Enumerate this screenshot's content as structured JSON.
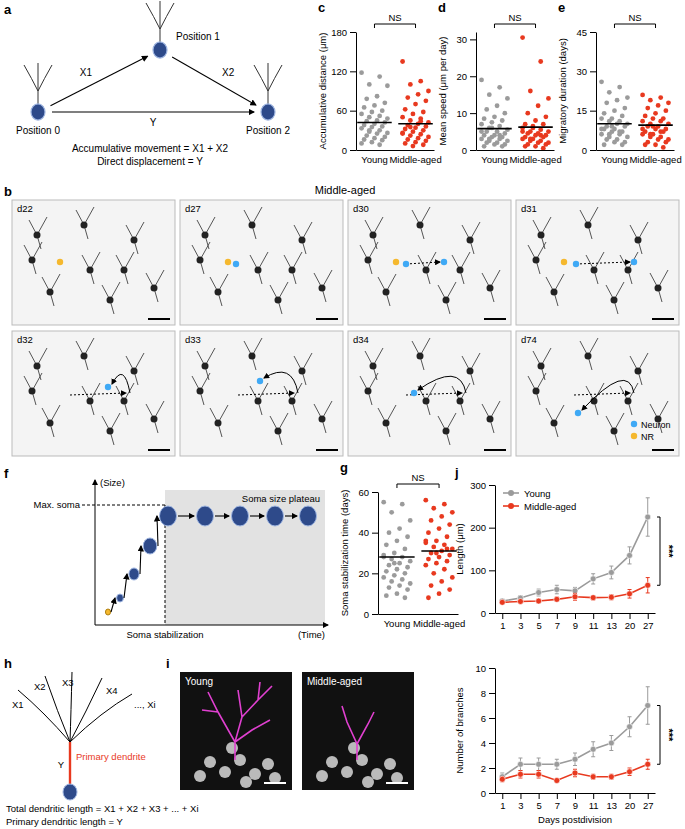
{
  "chart_data": [
    {
      "type": "strip",
      "panel": "c",
      "categories": [
        "Young",
        "Middle-aged"
      ],
      "y_label": "Accumulative distance (μm)",
      "ylim": [
        0,
        180
      ],
      "yticks": [
        0,
        60,
        120,
        180
      ],
      "annotation": "NS",
      "groups": [
        {
          "color": "#9b9b9b",
          "mean": 42,
          "values": [
            118,
            112,
            100,
            98,
            82,
            78,
            72,
            68,
            65,
            60,
            58,
            55,
            52,
            50,
            48,
            45,
            44,
            42,
            40,
            38,
            36,
            35,
            33,
            30,
            28,
            26,
            25,
            22,
            20,
            18,
            16,
            15,
            12,
            10,
            8,
            30
          ]
        },
        {
          "color": "#e8391f",
          "mean": 40,
          "values": [
            135,
            105,
            100,
            90,
            85,
            80,
            75,
            70,
            62,
            58,
            55,
            50,
            48,
            45,
            42,
            40,
            38,
            36,
            34,
            32,
            30,
            28,
            26,
            24,
            22,
            20,
            18,
            16,
            14,
            12,
            10,
            8,
            6,
            25,
            44,
            35
          ]
        }
      ]
    },
    {
      "type": "strip",
      "panel": "d",
      "categories": [
        "Young",
        "Middle-aged"
      ],
      "y_label": "Mean speed (μm per day)",
      "ylim": [
        0,
        32
      ],
      "yticks": [
        0,
        10,
        20,
        30
      ],
      "annotation": "NS",
      "groups": [
        {
          "color": "#9b9b9b",
          "mean": 5.8,
          "values": [
            19,
            17,
            15,
            14,
            12,
            11,
            10,
            9,
            8.5,
            8,
            7.5,
            7,
            6.5,
            6,
            5.5,
            5,
            5,
            4.5,
            4,
            4,
            3.5,
            3.5,
            3,
            3,
            2.5,
            2.5,
            2,
            2,
            1.5,
            1.5,
            1,
            1,
            6,
            5,
            4,
            3
          ]
        },
        {
          "color": "#e8391f",
          "mean": 6.2,
          "values": [
            30.5,
            24,
            16,
            14,
            12,
            10,
            9,
            8,
            7,
            7,
            6.5,
            6,
            5.5,
            5,
            5,
            4.5,
            4.5,
            4,
            4,
            3.5,
            3.5,
            3,
            3,
            2.5,
            2.5,
            2,
            2,
            1.5,
            1.5,
            1,
            1,
            0.5,
            6,
            5,
            4,
            3
          ]
        }
      ]
    },
    {
      "type": "strip",
      "panel": "e",
      "categories": [
        "Young",
        "Middle-aged"
      ],
      "y_label": "Migratory duration (days)",
      "ylim": [
        0,
        45
      ],
      "yticks": [
        0,
        15,
        30,
        45
      ],
      "annotation": "NS",
      "groups": [
        {
          "color": "#9b9b9b",
          "mean": 10,
          "values": [
            26,
            24,
            22,
            20,
            19,
            18,
            16,
            15,
            14,
            13,
            12,
            12,
            11,
            11,
            10,
            10,
            9,
            9,
            8,
            8,
            7,
            7,
            6,
            6,
            5,
            5,
            4,
            4,
            3,
            3,
            2,
            2,
            9,
            8,
            7,
            6
          ]
        },
        {
          "color": "#e8391f",
          "mean": 9.5,
          "values": [
            21,
            20,
            19,
            18,
            17,
            16,
            15,
            14,
            13,
            12,
            12,
            11,
            11,
            10,
            10,
            9,
            9,
            8,
            8,
            7,
            7,
            6,
            6,
            5,
            5,
            4,
            4,
            3,
            3,
            2,
            2,
            1,
            9,
            8,
            7,
            6
          ]
        }
      ]
    },
    {
      "type": "strip",
      "panel": "g",
      "categories": [
        "Young",
        "Middle-aged"
      ],
      "y_label": "Soma stabilization time (days)",
      "ylim": [
        0,
        60
      ],
      "yticks": [
        0,
        20,
        40,
        60
      ],
      "annotation": "NS",
      "groups": [
        {
          "color": "#9b9b9b",
          "mean": 28,
          "values": [
            55,
            54,
            50,
            46,
            42,
            40,
            38,
            36,
            34,
            32,
            30,
            29,
            28,
            27,
            26,
            25,
            24,
            23,
            22,
            21,
            20,
            19,
            18,
            17,
            16,
            15,
            14,
            13,
            12,
            10,
            9,
            8,
            25,
            28
          ]
        },
        {
          "color": "#e8391f",
          "mean": 31,
          "values": [
            56,
            54,
            52,
            50,
            48,
            46,
            44,
            42,
            40,
            38,
            36,
            35,
            34,
            33,
            32,
            31,
            30,
            29,
            28,
            27,
            26,
            25,
            24,
            22,
            20,
            18,
            16,
            14,
            12,
            10,
            8,
            32,
            30,
            36
          ]
        }
      ]
    },
    {
      "type": "line",
      "panel": "j",
      "categories": [
        1,
        3,
        5,
        7,
        9,
        11,
        13,
        20,
        27
      ],
      "y_label": "Length (μm)",
      "ylim": [
        0,
        300
      ],
      "yticks": [
        0,
        100,
        200,
        300
      ],
      "legend": "top-left",
      "annotation": "***",
      "series": [
        {
          "name": "Young",
          "color": "#9b9b9b",
          "marker": "circle",
          "values": [
            28,
            35,
            48,
            55,
            52,
            80,
            95,
            135,
            225
          ],
          "errors": [
            4,
            6,
            8,
            10,
            8,
            12,
            15,
            20,
            45
          ]
        },
        {
          "name": "Middle-aged",
          "color": "#e8391f",
          "marker": "circle",
          "values": [
            25,
            27,
            28,
            32,
            38,
            36,
            37,
            45,
            65
          ],
          "errors": [
            3,
            3,
            4,
            5,
            8,
            5,
            6,
            10,
            18
          ]
        }
      ]
    },
    {
      "type": "line",
      "categories": [
        1,
        3,
        5,
        7,
        9,
        11,
        13,
        20,
        27
      ],
      "x_label": "Days postdivision",
      "y_label": "Number of branches",
      "ylim": [
        0,
        10
      ],
      "yticks": [
        0,
        2,
        4,
        6,
        8,
        10
      ],
      "annotation": "***",
      "series": [
        {
          "color": "#9b9b9b",
          "marker": "circle",
          "values": [
            1.3,
            2.3,
            2.3,
            2.3,
            2.7,
            3.5,
            4,
            5.3,
            7
          ],
          "errors": [
            0.3,
            0.5,
            0.5,
            0.4,
            0.5,
            0.6,
            0.6,
            0.8,
            1.5
          ]
        },
        {
          "color": "#e8391f",
          "marker": "circle",
          "values": [
            1.1,
            1.5,
            1.5,
            1.0,
            1.6,
            1.3,
            1.3,
            1.7,
            2.3
          ],
          "errors": [
            0.2,
            0.3,
            0.3,
            0.1,
            0.3,
            0.2,
            0.2,
            0.3,
            0.4
          ]
        }
      ]
    }
  ],
  "diagrams": {
    "a": {
      "label": "a",
      "positions": [
        "Position 0",
        "Position 1",
        "Position 2"
      ],
      "arrows": [
        "X1",
        "X2",
        "Y"
      ],
      "formulas": [
        "Accumulative movement = X1 + X2",
        "Direct displacement = Y"
      ]
    },
    "b": {
      "label": "b",
      "title": "Middle-aged",
      "frames": [
        "d22",
        "d27",
        "d30",
        "d31",
        "d32",
        "d33",
        "d34",
        "d74"
      ],
      "legend": [
        {
          "name": "Neuron",
          "color": "#3fa9f5"
        },
        {
          "name": "NR",
          "color": "#f5b82e"
        }
      ]
    },
    "f": {
      "label": "f",
      "y_label": "(Size)",
      "x_label": "(Time)",
      "max_label": "Max. soma",
      "plateau_label": "Soma size plateau",
      "stage_label": "Soma stabilization"
    },
    "h": {
      "label": "h",
      "branches": [
        "X1",
        "X2",
        "X3",
        "X4",
        "..., Xi"
      ],
      "primary": "Y",
      "primary_label": "Primary dendrite",
      "formulas": [
        "Total dendritic length = X1 + X2 + X3 + ... + Xi",
        "Primary dendritic length = Y"
      ]
    },
    "i": {
      "label": "i",
      "images": [
        "Young",
        "Middle-aged"
      ]
    }
  }
}
